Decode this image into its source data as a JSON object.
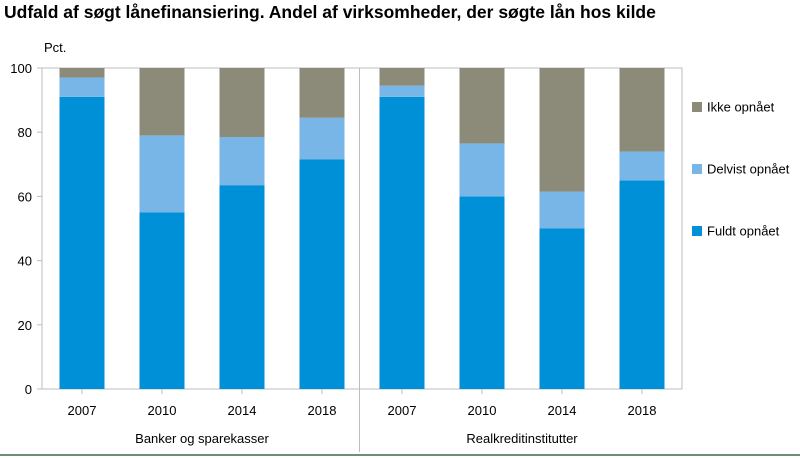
{
  "title": "Udfald af søgt lånefinansiering. Andel af virksomheder, der søgte lån hos kilde",
  "chart_data": {
    "type": "bar",
    "stacked": true,
    "y_unit_label": "Pct.",
    "ylim": [
      0,
      100
    ],
    "yticks": [
      0,
      20,
      40,
      60,
      80,
      100
    ],
    "grid": false,
    "legend_position": "right",
    "groups": [
      {
        "label": "Banker og sparekasser",
        "categories": [
          "2007",
          "2010",
          "2014",
          "2018"
        ]
      },
      {
        "label": "Realkreditinstitutter",
        "categories": [
          "2007",
          "2010",
          "2014",
          "2018"
        ]
      }
    ],
    "categories": [
      "2007",
      "2010",
      "2014",
      "2018",
      "2007",
      "2010",
      "2014",
      "2018"
    ],
    "series": [
      {
        "name": "Fuldt opnået",
        "color": "#0090d8",
        "values": [
          91,
          55,
          63.5,
          71.5,
          91,
          60,
          50,
          65
        ]
      },
      {
        "name": "Delvist opnået",
        "color": "#77b6e6",
        "values": [
          6,
          24,
          15,
          13,
          3.5,
          16.5,
          11.5,
          9
        ]
      },
      {
        "name": "Ikke opnået",
        "color": "#8c8b79",
        "values": [
          3,
          21,
          21.5,
          15.5,
          5.5,
          23.5,
          38.5,
          26
        ]
      }
    ]
  }
}
